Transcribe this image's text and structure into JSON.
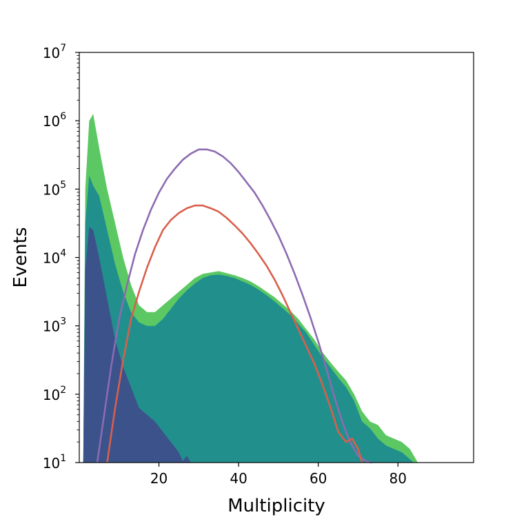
{
  "chart_data": {
    "type": "area",
    "xlabel": "Multiplicity",
    "ylabel": "Events",
    "xlim": [
      0,
      99
    ],
    "ylim_log10": [
      1,
      7
    ],
    "log_y": true,
    "x_ticks": [
      20,
      40,
      60,
      80
    ],
    "y_ticks": [
      {
        "base": "10",
        "exp": "1",
        "log10": 1
      },
      {
        "base": "10",
        "exp": "2",
        "log10": 2
      },
      {
        "base": "10",
        "exp": "3",
        "log10": 3
      },
      {
        "base": "10",
        "exp": "4",
        "log10": 4
      },
      {
        "base": "10",
        "exp": "5",
        "log10": 5
      },
      {
        "base": "10",
        "exp": "6",
        "log10": 6
      },
      {
        "base": "10",
        "exp": "7",
        "log10": 7
      }
    ],
    "series": [
      {
        "type": "area",
        "color": "#5cc863",
        "points": [
          [
            1,
            1
          ],
          [
            1.5,
            5.0
          ],
          [
            2.5,
            6.0
          ],
          [
            3.5,
            6.1
          ],
          [
            5,
            5.6
          ],
          [
            7,
            5.0
          ],
          [
            9,
            4.5
          ],
          [
            11,
            4.0
          ],
          [
            13,
            3.6
          ],
          [
            15,
            3.3
          ],
          [
            17,
            3.2
          ],
          [
            19,
            3.2
          ],
          [
            21,
            3.3
          ],
          [
            23,
            3.4
          ],
          [
            25,
            3.5
          ],
          [
            27,
            3.6
          ],
          [
            29,
            3.7
          ],
          [
            31,
            3.76
          ],
          [
            33,
            3.78
          ],
          [
            35,
            3.8
          ],
          [
            37,
            3.77
          ],
          [
            39,
            3.74
          ],
          [
            41,
            3.7
          ],
          [
            43,
            3.65
          ],
          [
            45,
            3.58
          ],
          [
            47,
            3.5
          ],
          [
            49,
            3.42
          ],
          [
            51,
            3.32
          ],
          [
            53,
            3.22
          ],
          [
            55,
            3.1
          ],
          [
            57,
            2.95
          ],
          [
            59,
            2.8
          ],
          [
            61,
            2.62
          ],
          [
            63,
            2.47
          ],
          [
            65,
            2.33
          ],
          [
            67,
            2.2
          ],
          [
            69,
            2.0
          ],
          [
            71,
            1.75
          ],
          [
            73,
            1.6
          ],
          [
            75,
            1.55
          ],
          [
            77,
            1.4
          ],
          [
            79,
            1.35
          ],
          [
            81,
            1.3
          ],
          [
            83,
            1.2
          ],
          [
            84.5,
            1.05
          ],
          [
            85,
            1
          ]
        ]
      },
      {
        "type": "area",
        "color": "#21908d",
        "points": [
          [
            1,
            1
          ],
          [
            1.5,
            4.5
          ],
          [
            2.5,
            5.2
          ],
          [
            3.5,
            5.05
          ],
          [
            5,
            4.9
          ],
          [
            7,
            4.4
          ],
          [
            9,
            3.9
          ],
          [
            11,
            3.5
          ],
          [
            13,
            3.2
          ],
          [
            15,
            3.05
          ],
          [
            17,
            3.0
          ],
          [
            19,
            3.0
          ],
          [
            21,
            3.1
          ],
          [
            23,
            3.25
          ],
          [
            25,
            3.4
          ],
          [
            27,
            3.52
          ],
          [
            29,
            3.62
          ],
          [
            31,
            3.7
          ],
          [
            33,
            3.74
          ],
          [
            35,
            3.75
          ],
          [
            37,
            3.73
          ],
          [
            39,
            3.7
          ],
          [
            41,
            3.65
          ],
          [
            43,
            3.6
          ],
          [
            45,
            3.53
          ],
          [
            47,
            3.45
          ],
          [
            49,
            3.36
          ],
          [
            51,
            3.26
          ],
          [
            53,
            3.16
          ],
          [
            55,
            3.03
          ],
          [
            57,
            2.9
          ],
          [
            59,
            2.72
          ],
          [
            61,
            2.55
          ],
          [
            63,
            2.4
          ],
          [
            65,
            2.24
          ],
          [
            67,
            2.1
          ],
          [
            69,
            1.9
          ],
          [
            71,
            1.6
          ],
          [
            73,
            1.5
          ],
          [
            75,
            1.35
          ],
          [
            77,
            1.25
          ],
          [
            79,
            1.2
          ],
          [
            81,
            1.15
          ],
          [
            83,
            1.05
          ],
          [
            84,
            1
          ]
        ]
      },
      {
        "type": "area",
        "color": "#3b528b",
        "points": [
          [
            1,
            1
          ],
          [
            1.5,
            3.8
          ],
          [
            2.5,
            4.45
          ],
          [
            3.5,
            4.4
          ],
          [
            5,
            4.0
          ],
          [
            7,
            3.4
          ],
          [
            9,
            2.8
          ],
          [
            11,
            2.4
          ],
          [
            13,
            2.1
          ],
          [
            15,
            1.8
          ],
          [
            17,
            1.7
          ],
          [
            19,
            1.6
          ],
          [
            21,
            1.45
          ],
          [
            23,
            1.3
          ],
          [
            25,
            1.15
          ],
          [
            26,
            1.02
          ],
          [
            27,
            1.1
          ],
          [
            28,
            1
          ]
        ]
      },
      {
        "type": "line",
        "color": "#8c6bb1",
        "points": [
          [
            4.5,
            1
          ],
          [
            6,
            1.6
          ],
          [
            8,
            2.4
          ],
          [
            10,
            3.1
          ],
          [
            12,
            3.6
          ],
          [
            14,
            4.05
          ],
          [
            16,
            4.4
          ],
          [
            18,
            4.7
          ],
          [
            20,
            4.95
          ],
          [
            22,
            5.15
          ],
          [
            24,
            5.3
          ],
          [
            26,
            5.43
          ],
          [
            28,
            5.52
          ],
          [
            30,
            5.58
          ],
          [
            32,
            5.58
          ],
          [
            34,
            5.55
          ],
          [
            36,
            5.48
          ],
          [
            38,
            5.38
          ],
          [
            40,
            5.25
          ],
          [
            42,
            5.1
          ],
          [
            44,
            4.95
          ],
          [
            46,
            4.76
          ],
          [
            48,
            4.55
          ],
          [
            50,
            4.32
          ],
          [
            52,
            4.06
          ],
          [
            54,
            3.77
          ],
          [
            56,
            3.46
          ],
          [
            58,
            3.13
          ],
          [
            60,
            2.77
          ],
          [
            62,
            2.38
          ],
          [
            64,
            1.97
          ],
          [
            66,
            1.6
          ],
          [
            68,
            1.3
          ],
          [
            70,
            1.1
          ],
          [
            72,
            1.02
          ],
          [
            73.5,
            1
          ]
        ]
      },
      {
        "type": "line",
        "color": "#d95f4c",
        "points": [
          [
            7,
            1
          ],
          [
            9,
            1.8
          ],
          [
            11,
            2.5
          ],
          [
            13,
            3.1
          ],
          [
            15,
            3.5
          ],
          [
            17,
            3.85
          ],
          [
            19,
            4.15
          ],
          [
            21,
            4.4
          ],
          [
            23,
            4.55
          ],
          [
            25,
            4.65
          ],
          [
            27,
            4.72
          ],
          [
            29,
            4.76
          ],
          [
            31,
            4.76
          ],
          [
            33,
            4.72
          ],
          [
            35,
            4.67
          ],
          [
            37,
            4.58
          ],
          [
            39,
            4.47
          ],
          [
            41,
            4.35
          ],
          [
            43,
            4.21
          ],
          [
            45,
            4.05
          ],
          [
            47,
            3.88
          ],
          [
            49,
            3.68
          ],
          [
            51,
            3.45
          ],
          [
            53,
            3.2
          ],
          [
            55,
            2.95
          ],
          [
            57,
            2.7
          ],
          [
            59,
            2.45
          ],
          [
            61,
            2.15
          ],
          [
            63,
            1.82
          ],
          [
            65,
            1.45
          ],
          [
            67,
            1.3
          ],
          [
            68.5,
            1.35
          ],
          [
            70,
            1.2
          ],
          [
            71,
            1
          ]
        ]
      }
    ]
  }
}
